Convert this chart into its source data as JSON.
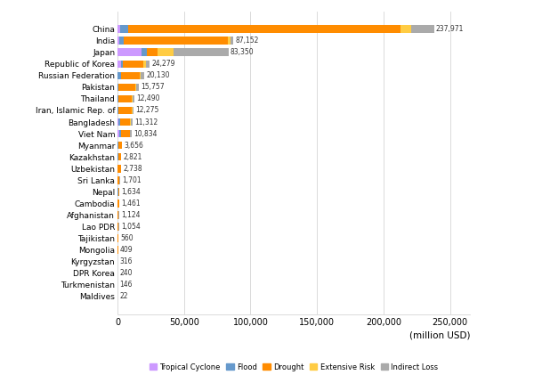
{
  "countries": [
    "China",
    "India",
    "Japan",
    "Republic of Korea",
    "Russian Federation",
    "Pakistan",
    "Thailand",
    "Iran, Islamic Rep. of",
    "Bangladesh",
    "Viet Nam",
    "Myanmar",
    "Kazakhstan",
    "Uzbekistan",
    "Sri Lanka",
    "Nepal",
    "Cambodia",
    "Afghanistan",
    "Lao PDR",
    "Tajikistan",
    "Mongolia",
    "Kyrgyzstan",
    "DPR Korea",
    "Turkmenistan",
    "Maldives"
  ],
  "totals": [
    237971,
    87152,
    83350,
    24279,
    20130,
    15757,
    12490,
    12275,
    11312,
    10834,
    3656,
    2821,
    2738,
    1701,
    1634,
    1461,
    1124,
    1054,
    560,
    409,
    316,
    240,
    146,
    22
  ],
  "tropical_cyclone": [
    2000,
    1200,
    18000,
    3000,
    0,
    0,
    200,
    0,
    800,
    1200,
    100,
    0,
    0,
    50,
    100,
    50,
    0,
    50,
    0,
    0,
    0,
    50,
    0,
    3
  ],
  "flood": [
    6000,
    3500,
    4000,
    1200,
    3000,
    1000,
    800,
    400,
    1000,
    1200,
    250,
    400,
    300,
    150,
    300,
    200,
    150,
    150,
    80,
    80,
    80,
    40,
    20,
    4
  ],
  "drought": [
    205000,
    78000,
    8000,
    15000,
    14000,
    12500,
    9800,
    10200,
    7800,
    6700,
    2900,
    2100,
    2100,
    1250,
    900,
    900,
    750,
    650,
    370,
    270,
    190,
    110,
    110,
    10
  ],
  "extensive_risk": [
    8000,
    2000,
    12000,
    2000,
    500,
    500,
    600,
    500,
    500,
    500,
    150,
    150,
    150,
    100,
    100,
    100,
    100,
    80,
    50,
    30,
    20,
    15,
    10,
    3
  ],
  "indirect_loss": [
    16971,
    2452,
    41350,
    3079,
    2630,
    1757,
    1090,
    1175,
    1212,
    1234,
    256,
    171,
    188,
    151,
    234,
    211,
    124,
    124,
    60,
    29,
    26,
    25,
    6,
    2
  ],
  "colors": {
    "tropical_cyclone": "#cc99ff",
    "flood": "#6699cc",
    "drought": "#ff8c00",
    "extensive_risk": "#ffcc44",
    "indirect_loss": "#aaaaaa"
  },
  "legend_labels": [
    "Tropical Cyclone",
    "Flood",
    "Drought",
    "Extensive Risk",
    "Indirect Loss"
  ],
  "xlabel": "(million USD)",
  "xlim": [
    0,
    265000
  ],
  "xticks": [
    0,
    50000,
    100000,
    150000,
    200000,
    250000
  ],
  "xtick_labels": [
    "0",
    "50,000",
    "100,000",
    "150,000",
    "200,000",
    "250,000"
  ]
}
